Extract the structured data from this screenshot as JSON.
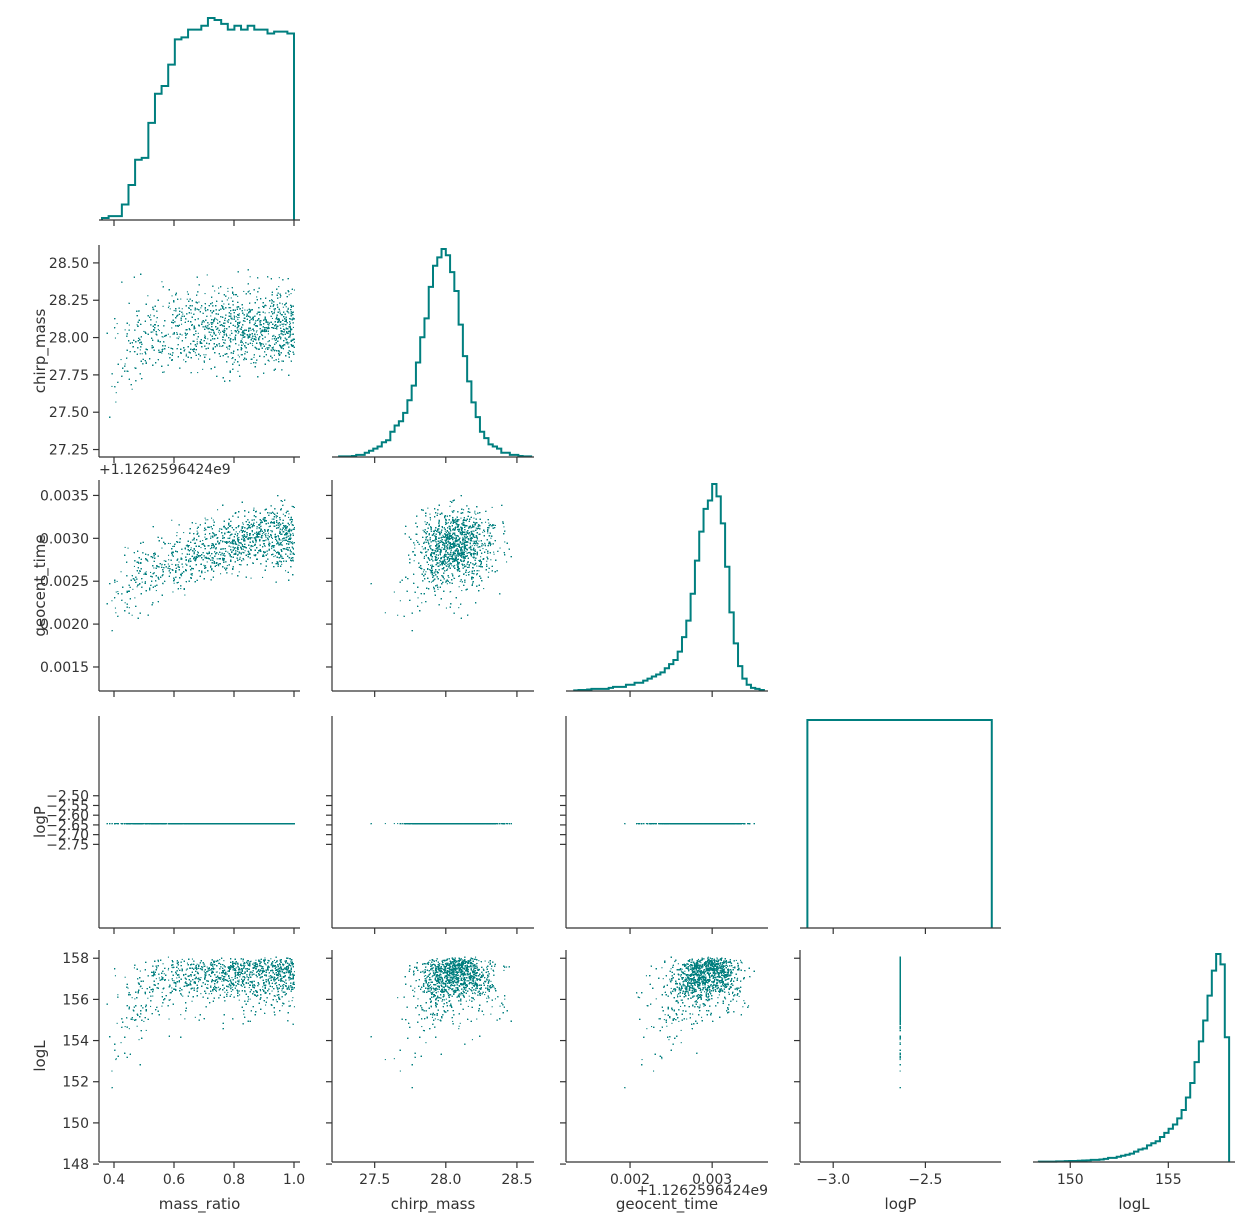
{
  "chart_data": {
    "type": "scatter",
    "title": "",
    "color": "#007f7f",
    "axis_color": "#333333",
    "parameters": [
      "mass_ratio",
      "chirp_mass",
      "geocent_time",
      "logP",
      "logL"
    ],
    "offset_labels": {
      "geocent_time": "+1.1262596424e9"
    },
    "ranges": {
      "mass_ratio": [
        0.35,
        1.02
      ],
      "chirp_mass": [
        27.2,
        28.62
      ],
      "geocent_time": [
        0.00122,
        0.00368
      ],
      "logP": [
        -3.18,
        -2.09
      ],
      "logL": [
        148.1,
        158.4
      ]
    },
    "tick_labels": {
      "mass_ratio": [
        "0.4",
        "0.6",
        "0.8",
        "1.0"
      ],
      "chirp_mass": [
        "27.5",
        "28.0",
        "28.5"
      ],
      "chirp_mass_y": [
        "27.25",
        "27.50",
        "27.75",
        "28.00",
        "28.25",
        "28.50"
      ],
      "geocent_time": [
        "0.002",
        "0.003"
      ],
      "geocent_time_y": [
        "0.0015",
        "0.0020",
        "0.0025",
        "0.0030",
        "0.0035"
      ],
      "logP": [
        "−3.0",
        "−2.5"
      ],
      "logP_y": [
        "−2.50",
        "−2.55",
        "−2.60",
        "−2.65",
        "−2.70",
        "−2.75"
      ],
      "logL": [
        "150",
        "155"
      ],
      "logL_y": [
        "148",
        "150",
        "152",
        "154",
        "156",
        "158"
      ]
    },
    "constants": {
      "logP": -2.64
    },
    "marginals": {
      "mass_ratio": {
        "edges_range": [
          0.36,
          1.0
        ],
        "counts": [
          1,
          2,
          2,
          8,
          18,
          31,
          32,
          50,
          65,
          69,
          80,
          93,
          94,
          98,
          98,
          100,
          104,
          103,
          101,
          98,
          100,
          98,
          100,
          98,
          98,
          96,
          97,
          97,
          96
        ]
      },
      "chirp_mass": {
        "edges_range": [
          27.25,
          28.6
        ],
        "counts": [
          0.3,
          0.3,
          0.3,
          0.5,
          1,
          1,
          2,
          3,
          4,
          5,
          7,
          8,
          12,
          15,
          17,
          21,
          27,
          34,
          45,
          57,
          66,
          81,
          91,
          95,
          99,
          96,
          88,
          79,
          63,
          48,
          36,
          26,
          19,
          12,
          9,
          6,
          5,
          4,
          2,
          2,
          1,
          1,
          0.5,
          0.3,
          0.3
        ]
      },
      "geocent_time": {
        "edges_range": [
          0.00132,
          0.00363
        ],
        "counts": [
          0.3,
          0.5,
          0.5,
          0.7,
          1,
          1,
          1,
          1,
          1.5,
          2,
          2,
          2,
          3,
          3,
          4,
          4,
          5,
          6,
          7,
          8,
          9,
          11,
          13,
          15,
          19,
          26,
          34,
          47,
          63,
          77,
          88,
          92,
          100,
          94,
          81,
          60,
          38,
          23,
          12,
          6,
          3,
          1.5,
          1,
          0.5
        ]
      },
      "logP": {
        "edges_range": [
          -3.14,
          -2.14
        ],
        "counts": [
          100
        ]
      },
      "logL": {
        "edges_range": [
          148.4,
          158.1
        ],
        "counts": [
          0.2,
          0.2,
          0.2,
          0.2,
          0.3,
          0.3,
          0.4,
          0.5,
          0.5,
          0.6,
          0.7,
          0.8,
          1,
          1,
          1.2,
          1.5,
          2,
          2,
          2.5,
          3,
          3.5,
          4,
          5,
          6,
          6.5,
          8,
          9,
          10,
          12,
          14,
          16,
          18,
          21,
          25,
          31,
          38,
          48,
          58,
          68,
          80,
          92,
          100,
          95,
          60
        ]
      }
    },
    "samples": 6000
  }
}
